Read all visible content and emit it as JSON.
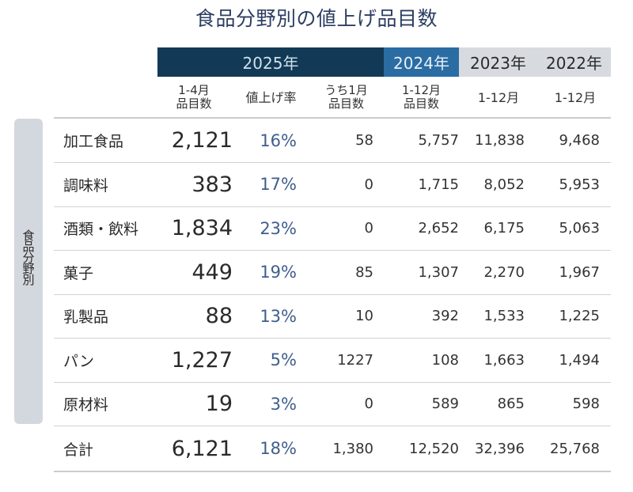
{
  "title": "食品分野別の値上げ品目数",
  "header": {
    "years": [
      {
        "label": "2025年",
        "color": "#123a56"
      },
      {
        "label": "2024年",
        "color": "#2b6ca3"
      },
      {
        "label": "2023年",
        "color": "#d7dbe0"
      },
      {
        "label": "2022年",
        "color": "#d7dbe0"
      }
    ],
    "columns": [
      {
        "line1": "1-4月",
        "line2": "品目数"
      },
      {
        "line1": "値上げ率",
        "line2": ""
      },
      {
        "line1": "うち1月",
        "line2": "品目数"
      },
      {
        "line1": "1-12月",
        "line2": "品目数"
      },
      {
        "line1": "1-12月",
        "line2": ""
      },
      {
        "line1": "1-12月",
        "line2": ""
      }
    ]
  },
  "sidebar_label": "食品分野別",
  "rows": [
    {
      "category": "加工食品",
      "items_2025": "2,121",
      "rate": "16%",
      "jan": "58",
      "y2024": "5,757",
      "y2023": "11,838",
      "y2022": "9,468"
    },
    {
      "category": "調味料",
      "items_2025": "383",
      "rate": "17%",
      "jan": "0",
      "y2024": "1,715",
      "y2023": "8,052",
      "y2022": "5,953"
    },
    {
      "category": "酒類・飲料",
      "items_2025": "1,834",
      "rate": "23%",
      "jan": "0",
      "y2024": "2,652",
      "y2023": "6,175",
      "y2022": "5,063"
    },
    {
      "category": "菓子",
      "items_2025": "449",
      "rate": "19%",
      "jan": "85",
      "y2024": "1,307",
      "y2023": "2,270",
      "y2022": "1,967"
    },
    {
      "category": "乳製品",
      "items_2025": "88",
      "rate": "13%",
      "jan": "10",
      "y2024": "392",
      "y2023": "1,533",
      "y2022": "1,225"
    },
    {
      "category": "パン",
      "items_2025": "1,227",
      "rate": "5%",
      "jan": "1227",
      "y2024": "108",
      "y2023": "1,663",
      "y2022": "1,494"
    },
    {
      "category": "原材料",
      "items_2025": "19",
      "rate": "3%",
      "jan": "0",
      "y2024": "589",
      "y2023": "865",
      "y2022": "598"
    }
  ],
  "total": {
    "category": "合計",
    "items_2025": "6,121",
    "rate": "18%",
    "jan": "1,380",
    "y2024": "12,520",
    "y2023": "32,396",
    "y2022": "25,768"
  }
}
